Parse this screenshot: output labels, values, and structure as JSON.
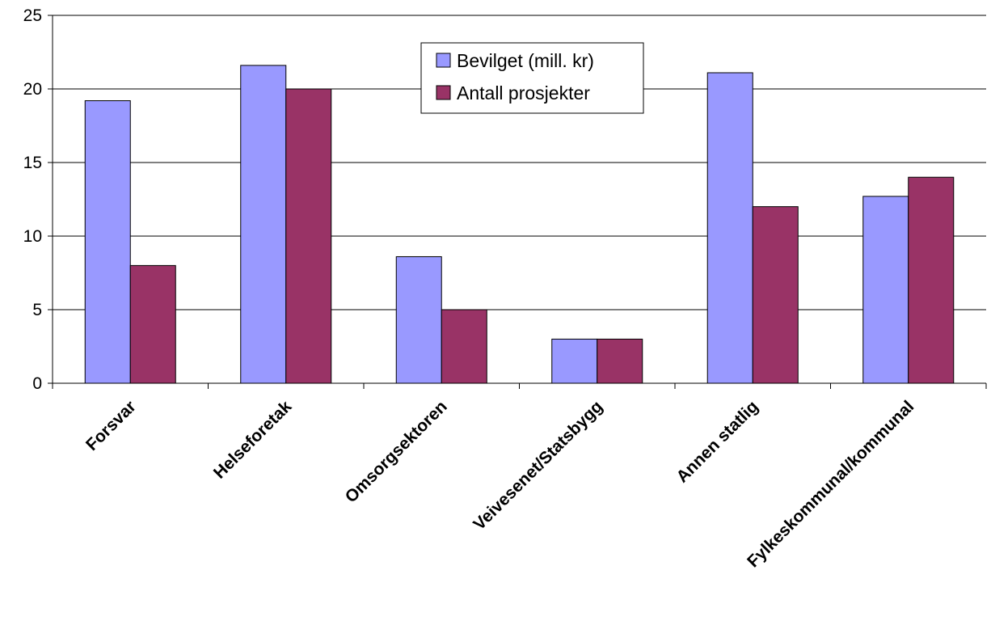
{
  "chart_data": {
    "type": "bar",
    "categories": [
      "Forsvar",
      "Helseforetak",
      "Omsorgsektoren",
      "Veivesenet/Statsbygg",
      "Annen statlig",
      "Fylkeskommunal/kommunal"
    ],
    "series": [
      {
        "name": "Bevilget (mill. kr)",
        "values": [
          19.2,
          21.6,
          8.6,
          3.0,
          21.1,
          12.7
        ],
        "color": "#9999ff"
      },
      {
        "name": "Antall prosjekter",
        "values": [
          8,
          20,
          5,
          3,
          12,
          14
        ],
        "color": "#993366"
      }
    ],
    "ylim": [
      0,
      25
    ],
    "yticks": [
      "0",
      "5",
      "10",
      "15",
      "20",
      "25"
    ],
    "ytick_values": [
      0,
      5,
      10,
      15,
      20,
      25
    ],
    "grid": true,
    "legend_position": "top-center",
    "title": "",
    "xlabel": "",
    "ylabel": ""
  }
}
